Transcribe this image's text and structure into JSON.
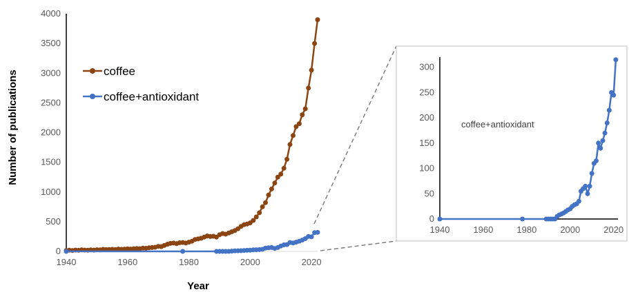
{
  "chart_data": [
    {
      "type": "line",
      "xlabel": "Year",
      "ylabel": "Number of publications",
      "xlim": [
        1940,
        2022
      ],
      "ylim": [
        0,
        4000
      ],
      "xticks": [
        1940,
        1960,
        1980,
        2000,
        2020
      ],
      "yticks": [
        0,
        500,
        1000,
        1500,
        2000,
        2500,
        3000,
        3500,
        4000
      ],
      "legend": "left",
      "grid": false,
      "series": [
        {
          "name": "coffee",
          "color": "#8B4513",
          "x": [
            1940,
            1941,
            1942,
            1943,
            1944,
            1945,
            1946,
            1947,
            1948,
            1949,
            1950,
            1951,
            1952,
            1953,
            1954,
            1955,
            1956,
            1957,
            1958,
            1959,
            1960,
            1961,
            1962,
            1963,
            1964,
            1965,
            1966,
            1967,
            1968,
            1969,
            1970,
            1971,
            1972,
            1973,
            1974,
            1975,
            1976,
            1977,
            1978,
            1979,
            1980,
            1981,
            1982,
            1983,
            1984,
            1985,
            1986,
            1987,
            1988,
            1989,
            1990,
            1991,
            1992,
            1993,
            1994,
            1995,
            1996,
            1997,
            1998,
            1999,
            2000,
            2001,
            2002,
            2003,
            2004,
            2005,
            2006,
            2007,
            2008,
            2009,
            2010,
            2011,
            2012,
            2013,
            2014,
            2015,
            2016,
            2017,
            2018,
            2019,
            2020,
            2021,
            2022
          ],
          "y": [
            15,
            20,
            15,
            22,
            18,
            25,
            22,
            20,
            25,
            22,
            28,
            25,
            35,
            30,
            32,
            35,
            30,
            40,
            35,
            38,
            42,
            40,
            45,
            48,
            45,
            55,
            52,
            60,
            65,
            70,
            85,
            80,
            100,
            120,
            135,
            140,
            130,
            145,
            150,
            140,
            155,
            170,
            200,
            210,
            220,
            240,
            260,
            250,
            255,
            240,
            280,
            300,
            290,
            310,
            330,
            350,
            380,
            420,
            450,
            460,
            480,
            520,
            580,
            650,
            750,
            820,
            950,
            1050,
            1150,
            1250,
            1300,
            1400,
            1550,
            1800,
            1950,
            2100,
            2150,
            2300,
            2400,
            2750,
            3050,
            3500,
            3900
          ],
          "notes": ""
        },
        {
          "name": "coffee+antioxidant",
          "color": "#4472C4",
          "x": [
            1940,
            1978,
            1989,
            1990,
            1991,
            1992,
            1993,
            1994,
            1995,
            1996,
            1997,
            1998,
            1999,
            2000,
            2001,
            2002,
            2003,
            2004,
            2005,
            2006,
            2007,
            2008,
            2009,
            2010,
            2011,
            2012,
            2013,
            2014,
            2015,
            2016,
            2017,
            2018,
            2019,
            2020,
            2021,
            2022
          ],
          "y": [
            0,
            0,
            0,
            0,
            0,
            0,
            0,
            5,
            8,
            10,
            12,
            15,
            18,
            20,
            25,
            28,
            30,
            35,
            55,
            60,
            65,
            50,
            65,
            90,
            110,
            115,
            150,
            140,
            155,
            170,
            190,
            215,
            250,
            245,
            315,
            320
          ]
        }
      ]
    },
    {
      "type": "line",
      "annotation": "coffee+antioxidant",
      "xlim": [
        1940,
        2022
      ],
      "ylim": [
        0,
        320
      ],
      "xticks": [
        1940,
        1960,
        1980,
        2000,
        2020
      ],
      "yticks": [
        0,
        50,
        100,
        150,
        200,
        250,
        300
      ],
      "grid": false,
      "series": [
        {
          "color": "#4472C4",
          "x": [
            1940,
            1978,
            1989,
            1990,
            1991,
            1992,
            1993,
            1994,
            1995,
            1996,
            1997,
            1998,
            1999,
            2000,
            2001,
            2002,
            2003,
            2004,
            2005,
            2006,
            2007,
            2008,
            2009,
            2010,
            2011,
            2012,
            2013,
            2014,
            2015,
            2016,
            2017,
            2018,
            2019,
            2020,
            2021
          ],
          "y": [
            0,
            0,
            0,
            0,
            0,
            0,
            0,
            5,
            8,
            10,
            12,
            15,
            18,
            20,
            25,
            28,
            30,
            35,
            55,
            60,
            65,
            50,
            65,
            90,
            110,
            115,
            150,
            140,
            155,
            170,
            190,
            215,
            250,
            245,
            315
          ]
        }
      ]
    }
  ]
}
